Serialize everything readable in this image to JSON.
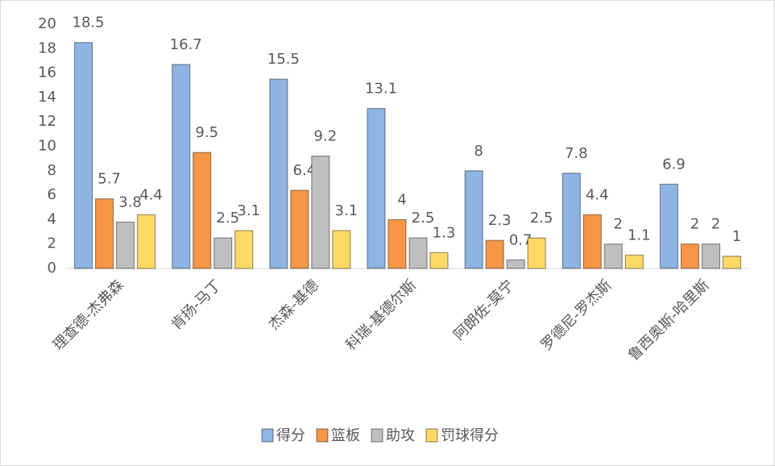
{
  "chart_data": {
    "type": "bar",
    "categories": [
      "理查德-杰弗森",
      "肯扬-马丁",
      "杰森-基德",
      "科瑞-基德尔斯",
      "阿朗佐-莫宁",
      "罗德尼-罗杰斯",
      "鲁西奥斯-哈里斯"
    ],
    "series": [
      {
        "name": "得分",
        "color": "#8db4e2",
        "values": [
          18.5,
          16.7,
          15.5,
          13.1,
          8,
          7.8,
          6.9
        ]
      },
      {
        "name": "篮板",
        "color": "#f79646",
        "values": [
          5.7,
          9.5,
          6.4,
          4,
          2.3,
          4.4,
          2
        ]
      },
      {
        "name": "助攻",
        "color": "#bfbfbf",
        "values": [
          3.8,
          2.5,
          9.2,
          2.5,
          0.7,
          2,
          2
        ]
      },
      {
        "name": "罚球得分",
        "color": "#ffd966",
        "values": [
          4.4,
          3.1,
          3.1,
          1.3,
          2.5,
          1.1,
          1
        ]
      }
    ],
    "ylim": [
      0,
      20
    ],
    "yticks": [
      0,
      2,
      4,
      6,
      8,
      10,
      12,
      14,
      16,
      18,
      20
    ],
    "grid": false,
    "legend": "bottom"
  }
}
